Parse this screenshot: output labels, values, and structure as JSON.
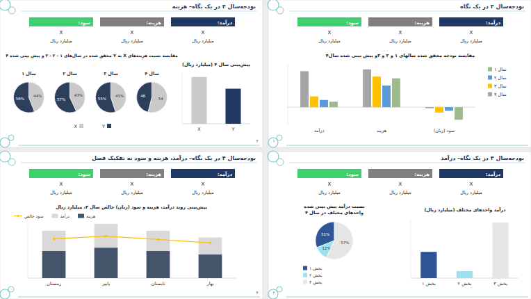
{
  "slides": [
    {
      "page": "۳",
      "title": "بودجه‌سال ۴ در یک نگاه– هزینه",
      "kpis": [
        {
          "label": "درآمد:",
          "value": "X",
          "unit": "میلیارد ریال"
        },
        {
          "label": "هزینه:",
          "value": "X",
          "unit": "میلیارد ریال"
        },
        {
          "label": "سود:",
          "value": "X",
          "unit": "میلیارد ریال"
        }
      ]
    },
    {
      "page": "۱",
      "title": "بودجه‌سال ۴ در یک نگاه",
      "kpis": [
        {
          "label": "درآمد:",
          "value": "X",
          "unit": "میلیارد ریال"
        },
        {
          "label": "هزینه:",
          "value": "X",
          "unit": "میلیارد ریال"
        },
        {
          "label": "سود:",
          "value": "X",
          "unit": "میلیارد ریال"
        }
      ]
    },
    {
      "page": "۴",
      "title": "بودجه‌سال ۴ در یک نگاه– درآمد، هزینه و سود به تفکیک فصل",
      "kpis": [
        {
          "label": "درآمد:",
          "value": "X",
          "unit": "میلیارد ریال"
        },
        {
          "label": "هزینه:",
          "value": "X",
          "unit": "میلیارد ریال"
        },
        {
          "label": "سود:",
          "value": "X",
          "unit": "میلیارد ریال"
        }
      ]
    },
    {
      "page": "۲",
      "title": "بودجه‌سال ۴ در یک نگاه– درآمد",
      "kpis": [
        {
          "label": "درآمد:",
          "value": "X",
          "unit": "میلیارد ریال"
        },
        {
          "label": "هزینه:",
          "value": "X",
          "unit": "میلیارد ریال"
        },
        {
          "label": "سود:",
          "value": "X",
          "unit": "میلیارد ریال"
        }
      ]
    }
  ],
  "chart_data": [
    {
      "type": "bar",
      "title": "پیش‌بینی سال ۴ (میلیارد ریال)",
      "categories": [
        "X",
        "Y"
      ],
      "values": [
        100,
        75
      ],
      "colors": [
        "#c9c9c9",
        "#1f3864"
      ],
      "ylim": [
        0,
        110
      ],
      "tick_labels": "x"
    },
    {
      "type": "pie",
      "title": "مقایسه نسبت هزینه‌های X به Y محقق شده در سال‌های ۱ - ۲ - ۳ و پیش بینی شده ۴",
      "categories": [
        "Y",
        "X"
      ],
      "colors": [
        "#2e3f5c",
        "#c9c9c9"
      ],
      "series": [
        {
          "name": "سال ۱",
          "values": [
            56,
            44
          ],
          "value_labels": [
            "56%",
            "44%"
          ]
        },
        {
          "name": "سال ۲",
          "values": [
            57,
            43
          ],
          "value_labels": [
            "57%",
            "43%"
          ]
        },
        {
          "name": "سال ۳",
          "values": [
            55,
            45
          ],
          "value_labels": [
            "55%",
            "45%"
          ]
        },
        {
          "name": "سال ۴",
          "values": [
            46,
            54
          ]
        }
      ],
      "data_labels": true,
      "legend": "bottom"
    },
    {
      "type": "bar",
      "title": "مقایسه بودجه محقق شده سالهای ۱ و ۲ و ۳و پیش بینی شده سال۴",
      "categories": [
        "درآمد",
        "هزینه",
        "سود (زیان)"
      ],
      "series": [
        {
          "name": "سال ۱",
          "color": "#9dbb8c",
          "values": [
            15,
            80,
            -35
          ]
        },
        {
          "name": "سال ۲",
          "color": "#5b9bd5",
          "values": [
            20,
            60,
            -10
          ]
        },
        {
          "name": "سال ۳",
          "color": "#ffc000",
          "values": [
            30,
            85,
            -15
          ]
        },
        {
          "name": "سال ۴",
          "color": "#a5a5a5",
          "values": [
            100,
            105,
            -3
          ]
        }
      ],
      "ylim": [
        -50,
        120
      ],
      "tick_labels": "x",
      "legend": "right"
    },
    {
      "type": "bar",
      "stacked": true,
      "title": "پیش‌بینی روند درآمد، هزینه و سود (زیان) خالص سال ۴، میلیارد ریال",
      "categories": [
        "زمستان",
        "پاییز",
        "تابستان",
        "بهار"
      ],
      "series": [
        {
          "name": "هزینه",
          "color": "#44546a",
          "values": [
            40,
            45,
            40,
            35
          ]
        },
        {
          "name": "درآمد",
          "color": "#d9d9d9",
          "values": [
            30,
            35,
            30,
            25
          ]
        },
        {
          "name": "سود خالص",
          "type": "line",
          "color": "#ffc000",
          "marker": "circle",
          "values": [
            58,
            62,
            57,
            52
          ]
        }
      ],
      "ylim": [
        0,
        80
      ],
      "tick_labels": "x",
      "legend": "top-left"
    },
    {
      "type": "bar",
      "title": "درآمد واحدهای مختلف (میلیارد ریال)",
      "categories": [
        "بخش ۱",
        "بخش ۲",
        "بخش ۳"
      ],
      "values": [
        45,
        12,
        95
      ],
      "colors": [
        "#2f5597",
        "#9de0ef",
        "#e7e6e6"
      ],
      "ylim": [
        0,
        100
      ],
      "tick_labels": "x"
    },
    {
      "type": "pie",
      "title": "نسبت درآمد پیش بینی شده واحدهای مختلف در سال ۴",
      "categories": [
        "بخش ۱",
        "بخش ۲",
        "بخش ۳"
      ],
      "values": [
        31,
        12,
        57
      ],
      "value_labels": [
        "31%",
        "12%",
        "57%"
      ],
      "colors": [
        "#2f5597",
        "#9de0ef",
        "#e7e6e6"
      ],
      "data_labels": true,
      "legend": "bottom"
    }
  ]
}
